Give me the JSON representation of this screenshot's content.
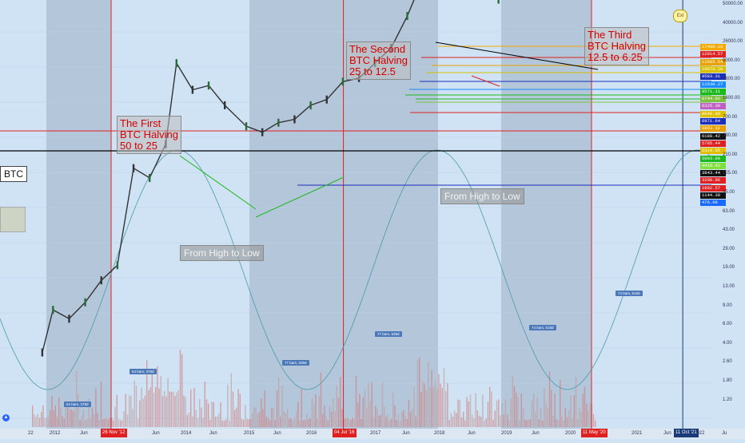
{
  "symbol": "BTC",
  "right_badge": "Exl",
  "logo_glyph": "▲",
  "colors": {
    "halving_line": "#e02020",
    "resistance_line": "#000000",
    "support_line": "#1b2fb8",
    "sine": "#4a9aa8",
    "candle_up": "#2a6b3a",
    "candle_down": "#333333",
    "volume_up": "#c0a0a0",
    "volume_down": "#d08080",
    "shade_dark": "#b3c6da",
    "shade_light": "#cfe3f5"
  },
  "annotations": {
    "halving1": [
      "The First",
      "BTC Halving",
      "50 to 25"
    ],
    "halving2": [
      "The Second",
      "BTC Halving",
      "25 to 12.5"
    ],
    "halving3": [
      "The Third",
      "BTC Halving",
      "12.5 to 6.25"
    ],
    "high_low_1": "From High to Low",
    "high_low_2": "From High to Low"
  },
  "bars_labels": [
    "54 bars, 378d",
    "54 bars, 378d",
    "77 bars, 539d",
    "77 bars, 539d",
    "74 bars, 518d",
    "74 bars, 518d"
  ],
  "x_axis": {
    "labels": [
      "22",
      "2012",
      "Jun",
      "Jun",
      "2014",
      "Jun",
      "2015",
      "Jun",
      "2016",
      "2017",
      "Jun",
      "2018",
      "Jun",
      "2019",
      "Jun",
      "2020",
      "2021",
      "Jun",
      "2022",
      "Ju"
    ],
    "date_flags": [
      "26 Nov '12",
      "04 Jul '16",
      "11 May '20",
      "11 Oct '21"
    ]
  },
  "y_axis": {
    "labels": [
      "50000.00",
      "40000.00",
      "26000.00",
      "8000.00",
      "2600.00",
      "1600.00",
      "700.00",
      "390.00",
      "210.00",
      "125.00",
      "95.00",
      "63.00",
      "43.00",
      "29.00",
      "19.00",
      "13.00",
      "9.00",
      "6.00",
      "4.00",
      "2.60",
      "1.80",
      "1.20"
    ]
  },
  "price_levels": [
    {
      "label": "17400.10",
      "color": "#f5a800"
    },
    {
      "label": "12914.57",
      "color": "#e02020"
    },
    {
      "label": "11605.54",
      "color": "#e8a000"
    },
    {
      "label": "10670.20",
      "color": "#d8c000"
    },
    {
      "label": "9583.31",
      "color": "#1b2fb8"
    },
    {
      "label": "11530.27",
      "color": "#1a8aff"
    },
    {
      "label": "9571.11",
      "color": "#1cb81c"
    },
    {
      "label": "8744.92",
      "color": "#80c040"
    },
    {
      "label": "6325.30",
      "color": "#c060c0"
    },
    {
      "label": "8046.09",
      "color": "#e0c000"
    },
    {
      "label": "6971.64",
      "color": "#1b2fb8"
    },
    {
      "label": "6863.32",
      "color": "#e8a000"
    },
    {
      "label": "6188.42",
      "color": "#111111"
    },
    {
      "label": "5785.44",
      "color": "#e02020"
    },
    {
      "label": "5314.55",
      "color": "#e0c000"
    },
    {
      "label": "5093.00",
      "color": "#1cb81c"
    },
    {
      "label": "4416.42",
      "color": "#80e040"
    },
    {
      "label": "3843.44",
      "color": "#111111"
    },
    {
      "label": "3200.06",
      "color": "#e02020"
    },
    {
      "label": "1902.57",
      "color": "#e02020"
    },
    {
      "label": "1144.30",
      "color": "#111111"
    },
    {
      "label": "476.69",
      "color": "#1a6aff"
    }
  ],
  "chart_data": {
    "type": "line",
    "title": "",
    "xlabel": "",
    "ylabel": "",
    "y_scale": "log",
    "ylim": [
      1,
      60000
    ],
    "xlim": [
      "2011-06",
      "2022-08"
    ],
    "grid": true,
    "series": [
      {
        "type": "candlestick",
        "x": [
          "2011-11",
          "2012-01",
          "2012-04",
          "2012-07",
          "2012-10",
          "2013-01",
          "2013-04",
          "2013-07",
          "2013-10",
          "2013-12",
          "2014-03",
          "2014-06",
          "2014-09",
          "2015-01",
          "2015-04",
          "2015-07",
          "2015-10",
          "2016-01",
          "2016-04",
          "2016-07",
          "2016-10",
          "2017-01",
          "2017-04",
          "2017-07",
          "2017-10",
          "2017-12",
          "2018-02",
          "2018-05",
          "2018-08",
          "2018-12",
          "2019-03",
          "2019-06",
          "2019-09",
          "2019-12",
          "2020-03",
          "2020-05"
        ],
        "values": [
          2.5,
          6,
          5,
          7,
          11,
          15,
          110,
          90,
          180,
          950,
          550,
          600,
          400,
          260,
          230,
          280,
          300,
          400,
          450,
          650,
          700,
          950,
          1300,
          2500,
          5500,
          17000,
          9000,
          8000,
          6500,
          3500,
          4000,
          10500,
          8500,
          7500,
          6000,
          9500
        ]
      }
    ],
    "halvings": [
      "2012-11-26",
      "2016-07-04",
      "2020-05-11"
    ],
    "vertical_marker": "2021-10-11"
  }
}
